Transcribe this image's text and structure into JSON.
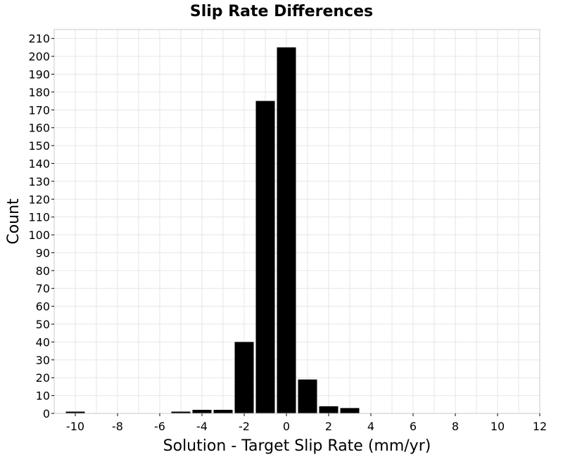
{
  "chart_data": {
    "type": "bar",
    "title": "Slip Rate Differences",
    "xlabel": "Solution - Target Slip Rate (mm/yr)",
    "ylabel": "Count",
    "xlim": [
      -11,
      12
    ],
    "ylim": [
      0,
      215
    ],
    "xticks": [
      -10,
      -8,
      -6,
      -4,
      -2,
      0,
      2,
      4,
      6,
      8,
      10,
      12
    ],
    "yticks": [
      0,
      10,
      20,
      30,
      40,
      50,
      60,
      70,
      80,
      90,
      100,
      110,
      120,
      130,
      140,
      150,
      160,
      170,
      180,
      190,
      200,
      210
    ],
    "bin_width": 1,
    "x": [
      -10,
      -9,
      -8,
      -7,
      -6,
      -5,
      -4,
      -3,
      -2,
      -1,
      0,
      1,
      2,
      3,
      4,
      5,
      6,
      7,
      8,
      9,
      10,
      11
    ],
    "values": [
      1,
      0,
      0,
      0,
      0,
      1,
      2,
      2,
      40,
      175,
      205,
      19,
      4,
      3,
      0,
      0,
      0,
      0,
      0,
      0,
      0,
      0
    ],
    "bar_color": "#000000",
    "grid": true
  }
}
